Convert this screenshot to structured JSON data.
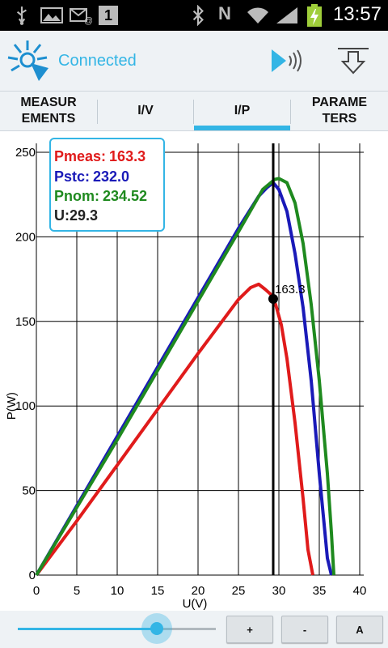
{
  "status_bar": {
    "time": "13:57",
    "icons": [
      "usb-icon",
      "image-icon",
      "email-icon",
      "calendar-one-icon",
      "bluetooth-icon",
      "nfc-n-icon",
      "wifi-icon",
      "signal-icon",
      "battery-charging-icon"
    ],
    "calendar_day": "1",
    "nfc_label": "N"
  },
  "app_bar": {
    "title": "Connected",
    "accent_color": "#33b5e5",
    "actions": [
      "play-sound-icon",
      "download-icon"
    ]
  },
  "tabs": [
    {
      "label": "MEASUR\nEMENTS",
      "selected": false
    },
    {
      "label": "I/V",
      "selected": false
    },
    {
      "label": "I/P",
      "selected": true
    },
    {
      "label": "PARAME\nTERS",
      "selected": false
    }
  ],
  "chart_data": {
    "type": "line",
    "xlabel": "U(V)",
    "ylabel": "P(W)",
    "xlim": [
      0,
      40
    ],
    "ylim": [
      0,
      250
    ],
    "x_ticks": [
      0,
      5,
      10,
      15,
      20,
      25,
      30,
      35,
      40
    ],
    "y_ticks": [
      0,
      50,
      100,
      150,
      200,
      250
    ],
    "grid": true,
    "cursor_u": 29.3,
    "marker": {
      "x": 29.3,
      "y": 163.3,
      "label": "163.3"
    },
    "legend": {
      "placement": "top-left",
      "items": [
        {
          "label": "Pmeas:",
          "value": "163.3",
          "color": "#e01b1b"
        },
        {
          "label": "Pstc:",
          "value": "232.0",
          "color": "#1a1ab8"
        },
        {
          "label": "Pnom:",
          "value": "234.52",
          "color": "#1f8a1f"
        },
        {
          "label": "U:",
          "value": "29.3",
          "color": "#222222"
        }
      ]
    },
    "series": [
      {
        "color": "#e01b1b",
        "x": [
          0,
          5,
          10,
          15,
          20,
          25,
          26.5,
          27.5,
          28.3,
          29,
          29.6,
          30.3,
          31,
          32,
          33,
          33.6,
          34.2
        ],
        "y": [
          0,
          32,
          65,
          98,
          131,
          163,
          170,
          172,
          169,
          166,
          160,
          148,
          128,
          90,
          45,
          15,
          0
        ]
      },
      {
        "color": "#1a1ab8",
        "x": [
          0,
          5,
          10,
          15,
          20,
          25,
          27.5,
          28.5,
          29.3,
          30,
          31,
          32,
          33,
          34,
          35,
          36,
          36.5
        ],
        "y": [
          0,
          41,
          82,
          123,
          164,
          205,
          224,
          229,
          232,
          228,
          215,
          190,
          158,
          115,
          60,
          10,
          0
        ]
      },
      {
        "color": "#1f8a1f",
        "x": [
          0,
          5,
          10,
          15,
          20,
          25,
          28,
          29.5,
          30,
          31,
          32,
          33,
          34,
          35,
          36,
          36.5,
          36.8
        ],
        "y": [
          0,
          40,
          80,
          121,
          162,
          203,
          228,
          234,
          234.5,
          232,
          220,
          196,
          160,
          115,
          60,
          25,
          0
        ]
      }
    ]
  },
  "bottom_bar": {
    "slider_value": 0.7,
    "buttons": {
      "plus": "+",
      "minus": "-",
      "auto": "A"
    }
  }
}
